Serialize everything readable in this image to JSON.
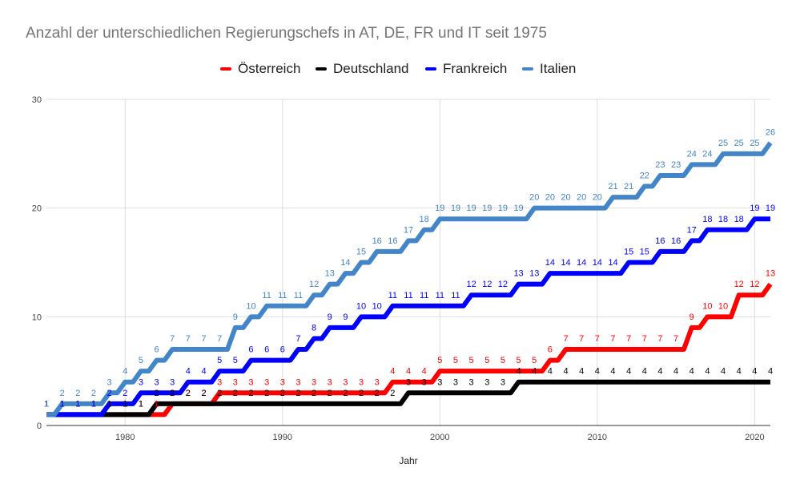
{
  "chart_data": {
    "type": "line",
    "title": "Anzahl der unterschiedlichen Regierungschefs in AT, DE, FR und IT seit 1975",
    "xlabel": "Jahr",
    "ylabel": "",
    "xlim": [
      1975,
      2021
    ],
    "ylim": [
      0,
      30
    ],
    "x_ticks": [
      1980,
      1990,
      2000,
      2010,
      2020
    ],
    "y_ticks": [
      0,
      10,
      20,
      30
    ],
    "grid": true,
    "legend_position": "top",
    "x": [
      1975,
      1976,
      1977,
      1978,
      1979,
      1980,
      1981,
      1982,
      1983,
      1984,
      1985,
      1986,
      1987,
      1988,
      1989,
      1990,
      1991,
      1992,
      1993,
      1994,
      1995,
      1996,
      1997,
      1998,
      1999,
      2000,
      2001,
      2002,
      2003,
      2004,
      2005,
      2006,
      2007,
      2008,
      2009,
      2010,
      2011,
      2012,
      2013,
      2014,
      2015,
      2016,
      2017,
      2018,
      2019,
      2020,
      2021
    ],
    "series": [
      {
        "name": "Österreich",
        "color": "#ff0000",
        "values": [
          1,
          1,
          1,
          1,
          1,
          1,
          1,
          1,
          2,
          2,
          2,
          3,
          3,
          3,
          3,
          3,
          3,
          3,
          3,
          3,
          3,
          3,
          4,
          4,
          4,
          5,
          5,
          5,
          5,
          5,
          5,
          5,
          6,
          7,
          7,
          7,
          7,
          7,
          7,
          7,
          7,
          9,
          10,
          10,
          12,
          12,
          13
        ]
      },
      {
        "name": "Deutschland",
        "color": "#000000",
        "values": [
          1,
          1,
          1,
          1,
          1,
          1,
          1,
          2,
          2,
          2,
          2,
          2,
          2,
          2,
          2,
          2,
          2,
          2,
          2,
          2,
          2,
          2,
          2,
          3,
          3,
          3,
          3,
          3,
          3,
          3,
          4,
          4,
          4,
          4,
          4,
          4,
          4,
          4,
          4,
          4,
          4,
          4,
          4,
          4,
          4,
          4,
          4
        ]
      },
      {
        "name": "Frankreich",
        "color": "#0000ff",
        "values": [
          1,
          1,
          1,
          1,
          2,
          2,
          3,
          3,
          3,
          4,
          4,
          5,
          5,
          6,
          6,
          6,
          7,
          8,
          9,
          9,
          10,
          10,
          11,
          11,
          11,
          11,
          11,
          12,
          12,
          12,
          13,
          13,
          14,
          14,
          14,
          14,
          14,
          15,
          15,
          16,
          16,
          17,
          18,
          18,
          18,
          19,
          19
        ]
      },
      {
        "name": "Italien",
        "color": "#4285c8",
        "values": [
          1,
          2,
          2,
          2,
          3,
          4,
          5,
          6,
          7,
          7,
          7,
          7,
          9,
          10,
          11,
          11,
          11,
          12,
          13,
          14,
          15,
          16,
          16,
          17,
          18,
          19,
          19,
          19,
          19,
          19,
          19,
          20,
          20,
          20,
          20,
          20,
          21,
          21,
          22,
          23,
          23,
          24,
          24,
          25,
          25,
          25,
          26
        ]
      }
    ]
  }
}
